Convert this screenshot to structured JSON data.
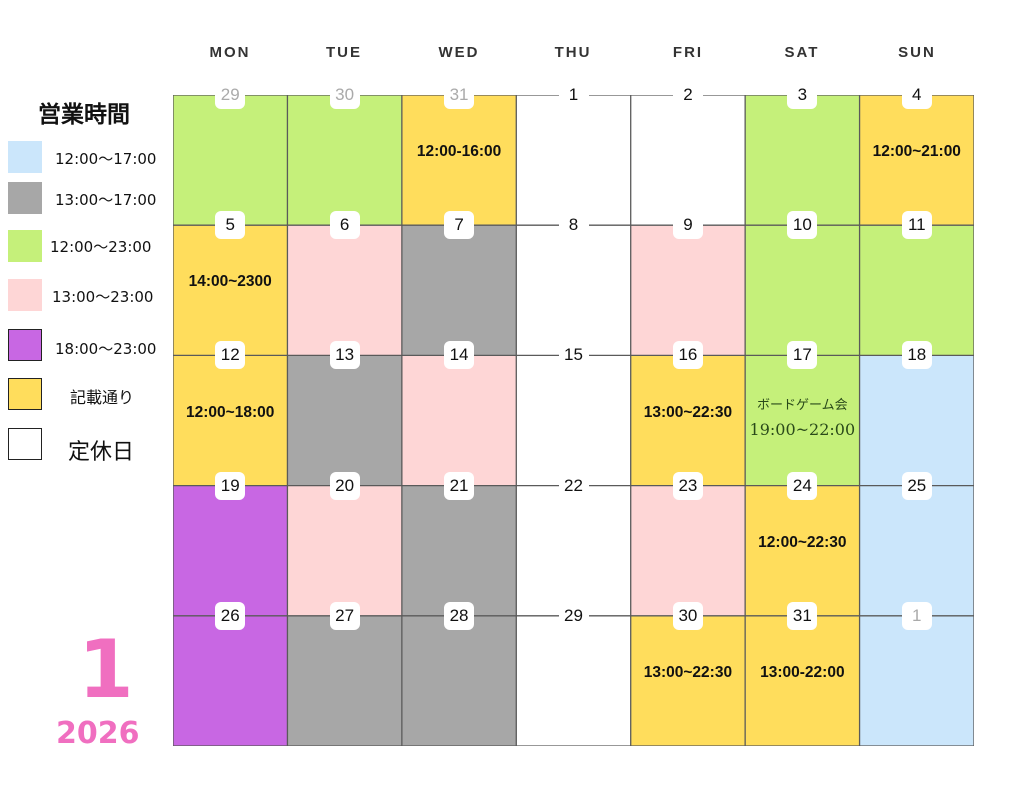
{
  "weekdays": [
    "MON",
    "TUE",
    "WED",
    "THU",
    "FRI",
    "SAT",
    "SUN"
  ],
  "legend": {
    "title": "営業時間",
    "items": [
      {
        "key": "blue",
        "color": "#cbe6fb",
        "label": "12:00〜17:00"
      },
      {
        "key": "gray",
        "color": "#a7a7a7",
        "label": "13:00〜17:00"
      },
      {
        "key": "green",
        "color": "#c5f07a",
        "label": "12:00〜23:00"
      },
      {
        "key": "pink",
        "color": "#fed6d6",
        "label": "13:00〜23:00"
      },
      {
        "key": "purple",
        "color": "#c867e3",
        "label": "18:00〜23:00"
      },
      {
        "key": "yellow",
        "color": "#ffdd5c",
        "label": "記載通り"
      },
      {
        "key": "white",
        "color": "#ffffff",
        "label": "定休日"
      }
    ]
  },
  "month": "1",
  "year": "2026",
  "weeks": [
    [
      {
        "day": "29",
        "faded": true,
        "color": "green"
      },
      {
        "day": "30",
        "faded": true,
        "color": "green"
      },
      {
        "day": "31",
        "faded": true,
        "color": "yellow",
        "label": "12:00-16:00"
      },
      {
        "day": "1",
        "color": "white"
      },
      {
        "day": "2",
        "color": "white"
      },
      {
        "day": "3",
        "color": "green"
      },
      {
        "day": "4",
        "color": "yellow",
        "label": "12:00~21:00"
      }
    ],
    [
      {
        "day": "5",
        "color": "yellow",
        "label": "14:00~2300"
      },
      {
        "day": "6",
        "color": "pink"
      },
      {
        "day": "7",
        "color": "gray"
      },
      {
        "day": "8",
        "color": "white"
      },
      {
        "day": "9",
        "color": "pink"
      },
      {
        "day": "10",
        "color": "green"
      },
      {
        "day": "11",
        "color": "green"
      }
    ],
    [
      {
        "day": "12",
        "color": "yellow",
        "label": "12:00~18:00"
      },
      {
        "day": "13",
        "color": "gray"
      },
      {
        "day": "14",
        "color": "pink"
      },
      {
        "day": "15",
        "color": "white"
      },
      {
        "day": "16",
        "color": "yellow",
        "label": "13:00~22:30"
      },
      {
        "day": "17",
        "color": "green",
        "special": {
          "line1": "ボードゲーム会",
          "line2": "19:00~22:00"
        }
      },
      {
        "day": "18",
        "color": "blue"
      }
    ],
    [
      {
        "day": "19",
        "color": "purple"
      },
      {
        "day": "20",
        "color": "pink"
      },
      {
        "day": "21",
        "color": "gray"
      },
      {
        "day": "22",
        "color": "white"
      },
      {
        "day": "23",
        "color": "pink"
      },
      {
        "day": "24",
        "color": "yellow",
        "label": "12:00~22:30"
      },
      {
        "day": "25",
        "color": "blue"
      }
    ],
    [
      {
        "day": "26",
        "color": "purple"
      },
      {
        "day": "27",
        "color": "gray"
      },
      {
        "day": "28",
        "color": "gray"
      },
      {
        "day": "29",
        "color": "white"
      },
      {
        "day": "30",
        "color": "yellow",
        "label": "13:00~22:30"
      },
      {
        "day": "31",
        "color": "yellow",
        "label": "13:00-22:00"
      },
      {
        "day": "1",
        "faded": true,
        "color": "blue"
      }
    ]
  ]
}
